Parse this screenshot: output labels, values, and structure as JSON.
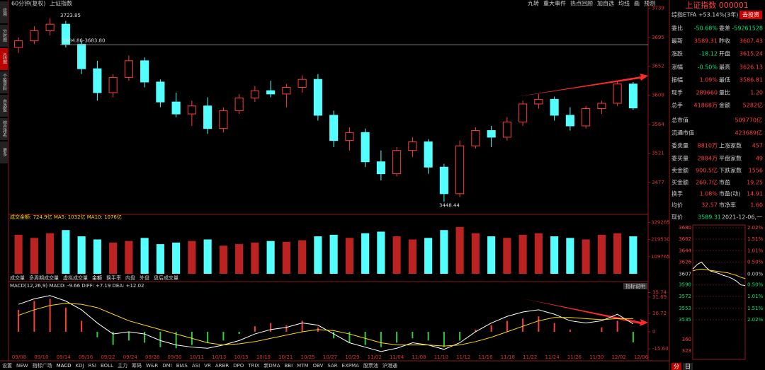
{
  "header": {
    "title": "60分钟(复权)",
    "name": "上证指数",
    "tools": [
      "九转",
      "重大事件",
      "热点回顾",
      "加自选",
      "均线",
      "画",
      "预测"
    ]
  },
  "sidebar": [
    "应用",
    "分时图",
    "K线图",
    "个股资料",
    "自选股",
    "综合排名",
    "更多"
  ],
  "chart_data": {
    "type": "candlestick",
    "candles": [
      [
        3680,
        3695,
        3672,
        3690
      ],
      [
        3690,
        3712,
        3685,
        3705
      ],
      [
        3705,
        3724,
        3698,
        3715
      ],
      [
        3715,
        3720,
        3680,
        3685
      ],
      [
        3685,
        3690,
        3640,
        3648
      ],
      [
        3648,
        3660,
        3600,
        3612
      ],
      [
        3612,
        3640,
        3605,
        3635
      ],
      [
        3635,
        3668,
        3630,
        3660
      ],
      [
        3660,
        3665,
        3620,
        3628
      ],
      [
        3628,
        3632,
        3590,
        3598
      ],
      [
        3598,
        3612,
        3575,
        3580
      ],
      [
        3580,
        3600,
        3562,
        3592
      ],
      [
        3592,
        3605,
        3550,
        3558
      ],
      [
        3558,
        3590,
        3552,
        3585
      ],
      [
        3585,
        3610,
        3580,
        3604
      ],
      [
        3604,
        3622,
        3598,
        3615
      ],
      [
        3615,
        3630,
        3605,
        3610
      ],
      [
        3610,
        3625,
        3590,
        3620
      ],
      [
        3620,
        3638,
        3612,
        3632
      ],
      [
        3632,
        3640,
        3570,
        3578
      ],
      [
        3578,
        3585,
        3530,
        3540
      ],
      [
        3540,
        3560,
        3525,
        3552
      ],
      [
        3552,
        3558,
        3500,
        3508
      ],
      [
        3508,
        3525,
        3480,
        3490
      ],
      [
        3490,
        3530,
        3486,
        3525
      ],
      [
        3525,
        3545,
        3515,
        3538
      ],
      [
        3538,
        3542,
        3490,
        3500
      ],
      [
        3500,
        3505,
        3448,
        3460
      ],
      [
        3460,
        3540,
        3455,
        3532
      ],
      [
        3532,
        3560,
        3528,
        3555
      ],
      [
        3555,
        3562,
        3530,
        3545
      ],
      [
        3545,
        3575,
        3540,
        3568
      ],
      [
        3568,
        3600,
        3562,
        3595
      ],
      [
        3595,
        3610,
        3588,
        3602
      ],
      [
        3602,
        3606,
        3570,
        3578
      ],
      [
        3578,
        3590,
        3555,
        3562
      ],
      [
        3562,
        3592,
        3558,
        3588
      ],
      [
        3588,
        3600,
        3580,
        3596
      ],
      [
        3596,
        3630,
        3592,
        3625
      ],
      [
        3625,
        3628,
        3586,
        3589
      ]
    ],
    "ylim": [
      3430,
      3745
    ],
    "yticks": [
      3739,
      3695,
      3652,
      3608,
      3564,
      3521,
      3477
    ],
    "annotations": [
      "3723.85",
      "3684.86-3683.80",
      "3448.44"
    ],
    "up_color": "#ff3b3b",
    "down_color": "#54ffff",
    "volume": {
      "legend": "成交金额: 724.9亿  MA5: 1032亿  MA10: 1076亿",
      "values": [
        250000,
        230000,
        260000,
        280000,
        240000,
        220000,
        200000,
        210000,
        230000,
        190000,
        200000,
        210000,
        220000,
        180000,
        190000,
        200000,
        210000,
        205000,
        215000,
        240000,
        250000,
        230000,
        260000,
        270000,
        240000,
        220000,
        230000,
        280000,
        300000,
        260000,
        240000,
        230000,
        250000,
        260000,
        240000,
        230000,
        220000,
        250000,
        260000,
        240000
      ],
      "ylim": [
        0,
        340000
      ],
      "yticks": [
        329285,
        219530,
        109765
      ]
    },
    "volume_tabs": [
      "成交量",
      "多周期成交量",
      "虚拟成交量",
      "金额",
      "换手率",
      "内盘",
      "外盘",
      "盘后成交量"
    ],
    "macd": {
      "legend": "MACD(12,26,9)  MACD: -9.66  DIFF: +7.19  DEA: +12.02",
      "button": "指标说明",
      "hist": [
        20,
        28,
        30,
        22,
        10,
        -5,
        -12,
        -8,
        -10,
        -14,
        -15,
        -12,
        -10,
        -8,
        -2,
        5,
        8,
        6,
        10,
        4,
        -6,
        -10,
        -12,
        -14,
        -10,
        -6,
        -8,
        -14,
        -8,
        2,
        6,
        10,
        12,
        14,
        8,
        2,
        0,
        4,
        10,
        -9.66
      ],
      "diff": [
        25,
        30,
        33,
        28,
        20,
        8,
        -2,
        0,
        -2,
        -8,
        -12,
        -14,
        -15,
        -12,
        -8,
        -2,
        2,
        4,
        8,
        6,
        -2,
        -10,
        -14,
        -18,
        -15,
        -10,
        -12,
        -16,
        -10,
        0,
        8,
        14,
        18,
        20,
        16,
        10,
        8,
        10,
        16,
        7.19
      ],
      "dea": [
        15,
        20,
        24,
        26,
        25,
        22,
        16,
        10,
        6,
        2,
        -2,
        -6,
        -10,
        -12,
        -11,
        -9,
        -6,
        -3,
        0,
        2,
        1,
        -2,
        -6,
        -10,
        -12,
        -12,
        -12,
        -13,
        -12,
        -9,
        -5,
        0,
        5,
        10,
        13,
        13,
        12,
        11,
        12,
        12.02
      ],
      "ylim": [
        -20,
        38
      ],
      "yticks": [
        35.74,
        31.69,
        16.72,
        0,
        {
          "value": -15.6,
          "label": "-15.60"
        }
      ]
    },
    "dates": [
      "09/08",
      "09/10",
      "09/14",
      "09/16",
      "09/22",
      "09/24",
      "09/28",
      "09/30",
      "10/11",
      "10/13",
      "10/15",
      "10/19",
      "10/21",
      "10/25",
      "10/27",
      "10/29",
      "11/02",
      "11/04",
      "11/08",
      "11/10",
      "11/12",
      "11/16",
      "11/18",
      "11/22",
      "11/24",
      "11/26",
      "11/30",
      "12/02",
      "12/06"
    ]
  },
  "bottom_tabs": [
    "设置",
    "NEW",
    "指标广场",
    "MACD",
    "KDJ",
    "RSI",
    "BOLL",
    "主力",
    "筹码",
    "W&R",
    "DMI",
    "BIAS",
    "ASI",
    "VR",
    "ARBR",
    "DPO",
    "TRIX",
    "新DMA",
    "BBI",
    "MTM",
    "OBV",
    "SAR",
    "EXPMA",
    "股票池",
    "沪港通"
  ],
  "quote": {
    "title": "上证指数 000001",
    "etf": "综指ETFA +53.14%(3年)",
    "invest": "去投资",
    "rows": [
      [
        "委比",
        "-50.68%",
        "委差",
        "-59261528"
      ],
      [
        "最新",
        "3589.31",
        "昨收",
        "3607.43"
      ],
      [
        "涨跌",
        "-18.12",
        "开盘",
        "3615.24"
      ],
      [
        "涨幅",
        "-0.50%",
        "最高",
        "3626.13"
      ],
      [
        "振幅",
        "1.09%",
        "最低",
        "3586.81"
      ],
      [
        "现手",
        "289660",
        "量比",
        "1.20"
      ],
      [
        "总手",
        "41868万",
        "金额",
        "5282亿"
      ],
      [
        "总市值",
        "509770亿"
      ],
      [
        "流通市值",
        "423689亿"
      ],
      [
        "委卖量",
        "8810万",
        "上涨家数",
        "457"
      ],
      [
        "委买量",
        "2884万",
        "平盘家数",
        "49"
      ],
      [
        "卖金额",
        "900.5亿",
        "下跌家数",
        "1556"
      ],
      [
        "买金额",
        "269.7亿",
        "市盈",
        "19.25"
      ],
      [
        "换手",
        "1.08%",
        "市盈(动)",
        "14.91"
      ],
      [
        "均价",
        "32.57",
        "市净率",
        "1.60"
      ]
    ],
    "now_label": "现价",
    "now": "3589.31",
    "date": "2021-12-06,一",
    "intraday": {
      "price": [
        3615,
        3622,
        3626,
        3618,
        3612,
        3610,
        3608,
        3605,
        3603,
        3600,
        3596,
        3590,
        3589
      ],
      "avg": [
        3612,
        3614,
        3615,
        3614,
        3613,
        3612,
        3611,
        3610,
        3609,
        3607,
        3605,
        3602,
        3600
      ],
      "ylim": [
        3535,
        3680
      ],
      "yticks": [
        3680,
        3662,
        3644,
        3626,
        3607,
        3590,
        3572,
        3553,
        3535
      ],
      "pct": [
        "2.02%",
        "1.51%",
        "1.01%",
        "0.50%",
        "0.00%",
        "0.50%",
        "1.01%",
        "1.51%",
        "2.02%"
      ],
      "vticks": [
        "360",
        "323"
      ]
    },
    "tabs": [
      "分",
      "日"
    ]
  }
}
